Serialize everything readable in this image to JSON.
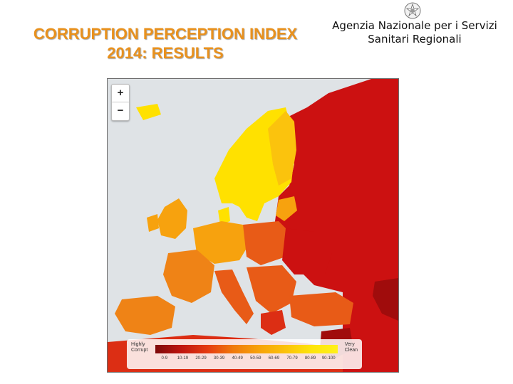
{
  "slide": {
    "title_line1": "CORRUPTION PERCEPTION INDEX",
    "title_line2": "2014: RESULTS",
    "agency_line1": "Agenzia Nazionale per i Servizi",
    "agency_line2": "Sanitari Regionali",
    "emblem_icon": "italian-republic-emblem-icon"
  },
  "map": {
    "zoom_in_label": "+",
    "zoom_out_label": "−",
    "legend": {
      "low_label_line1": "Highly",
      "low_label_line2": "Corrupt",
      "high_label_line1": "Very",
      "high_label_line2": "Clean",
      "ranges": [
        "0-9",
        "10-19",
        "20-29",
        "30-39",
        "40-49",
        "50-59",
        "60-69",
        "70-79",
        "80-89",
        "90-100"
      ]
    },
    "colors": {
      "very_clean": "#ffe100",
      "clean": "#fbc30d",
      "mid_high": "#f7a20e",
      "mid": "#ef8316",
      "mid_low": "#e85b17",
      "low": "#dc2e14",
      "very_low": "#cc1111",
      "highly_corrupt": "#a00c0c",
      "sea": "#dfe3e6"
    }
  }
}
